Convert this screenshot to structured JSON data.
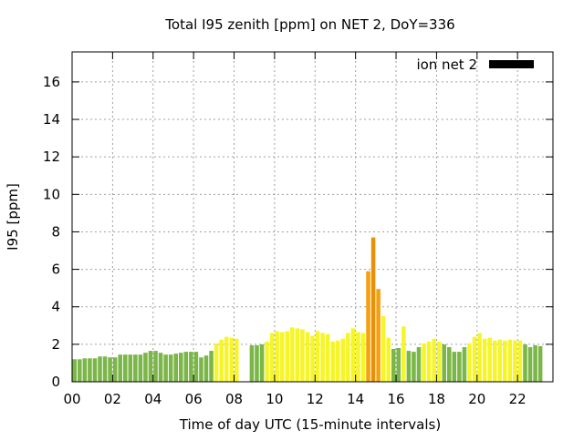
{
  "chart_data": {
    "type": "bar",
    "title": "Total I95 zenith [ppm] on NET 2, DoY=336",
    "xlabel": "Time of day UTC (15-minute intervals)",
    "ylabel": "I95 [ppm]",
    "xlim": [
      0,
      23.75
    ],
    "ylim": [
      0,
      17.6
    ],
    "x_ticks": [
      "00",
      "02",
      "04",
      "06",
      "08",
      "10",
      "12",
      "14",
      "16",
      "18",
      "20",
      "22"
    ],
    "y_ticks": [
      "0",
      "2",
      "4",
      "6",
      "8",
      "10",
      "12",
      "14",
      "16"
    ],
    "grid": true,
    "legend": {
      "label": "ion net 2",
      "position": "top-right",
      "color": "#000000"
    },
    "colors": {
      "green": "#7ab648",
      "yellow": "#f5f52a",
      "orange": "#f5a00f",
      "dark_orange": "#e8900a"
    },
    "x_start_hour": 0,
    "x_step_hours": 0.25,
    "values": [
      1.2,
      1.2,
      1.25,
      1.25,
      1.25,
      1.35,
      1.35,
      1.3,
      1.3,
      1.45,
      1.45,
      1.45,
      1.45,
      1.45,
      1.55,
      1.65,
      1.65,
      1.55,
      1.45,
      1.45,
      1.5,
      1.55,
      1.6,
      1.6,
      1.6,
      1.3,
      1.4,
      1.65,
      2.05,
      2.25,
      2.4,
      2.35,
      2.3,
      null,
      null,
      1.95,
      1.95,
      2.0,
      2.15,
      2.6,
      2.7,
      2.65,
      2.7,
      2.9,
      2.85,
      2.8,
      2.65,
      2.45,
      2.7,
      2.6,
      2.55,
      2.15,
      2.2,
      2.3,
      2.6,
      2.85,
      2.65,
      2.6,
      5.9,
      7.7,
      4.95,
      3.5,
      2.35,
      1.75,
      1.8,
      2.95,
      1.65,
      1.6,
      1.85,
      2.05,
      2.15,
      2.3,
      2.15,
      2.0,
      1.85,
      1.6,
      1.6,
      1.85,
      2.05,
      2.4,
      2.6,
      2.3,
      2.35,
      2.2,
      2.25,
      2.2,
      2.25,
      2.2,
      2.2,
      2.0,
      1.85,
      1.95,
      1.9
    ],
    "bar_colors": [
      "green",
      "green",
      "green",
      "green",
      "green",
      "green",
      "green",
      "green",
      "green",
      "green",
      "green",
      "green",
      "green",
      "green",
      "green",
      "green",
      "green",
      "green",
      "green",
      "green",
      "green",
      "green",
      "green",
      "green",
      "green",
      "green",
      "green",
      "green",
      "yellow",
      "yellow",
      "yellow",
      "yellow",
      "yellow",
      "green",
      "green",
      "green",
      "green",
      "green",
      "yellow",
      "yellow",
      "yellow",
      "yellow",
      "yellow",
      "yellow",
      "yellow",
      "yellow",
      "yellow",
      "yellow",
      "yellow",
      "yellow",
      "yellow",
      "yellow",
      "yellow",
      "yellow",
      "yellow",
      "yellow",
      "yellow",
      "yellow",
      "orange",
      "dark_orange",
      "orange",
      "yellow",
      "yellow",
      "green",
      "green",
      "yellow",
      "green",
      "green",
      "green",
      "yellow",
      "yellow",
      "yellow",
      "yellow",
      "green",
      "green",
      "green",
      "green",
      "green",
      "yellow",
      "yellow",
      "yellow",
      "yellow",
      "yellow",
      "yellow",
      "yellow",
      "yellow",
      "yellow",
      "yellow",
      "yellow",
      "green",
      "green",
      "green",
      "green"
    ]
  }
}
